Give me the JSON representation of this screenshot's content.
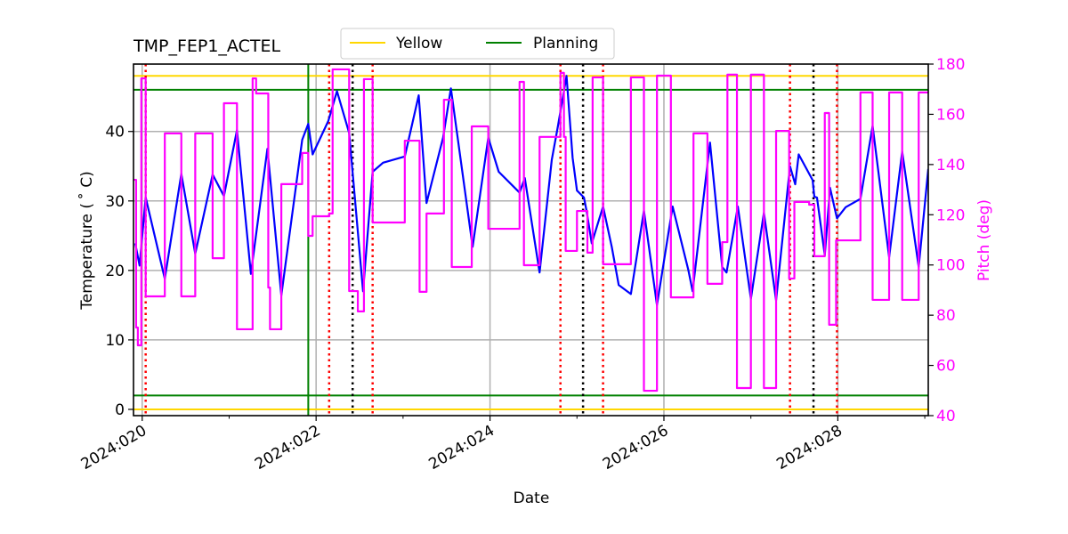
{
  "chart_data": {
    "type": "line",
    "title": "TMP_FEP1_ACTEL",
    "xlabel": "Date",
    "ylabel": "Temperature ($^\\circ$C)",
    "ylabel_display": "Temperature ( ˚ C)",
    "y2label": "Pitch (deg)",
    "xlim": [
      19.9,
      29.04
    ],
    "ylim": [
      -0.9,
      49.7
    ],
    "y2lim": [
      40,
      180
    ],
    "x_ticks": [
      20,
      22,
      24,
      26,
      28
    ],
    "x_tick_labels": [
      "2024:020",
      "2024:022",
      "2024:024",
      "2024:026",
      "2024:028"
    ],
    "x_minor_ticks": [
      21,
      23,
      25,
      27,
      29
    ],
    "y_ticks": [
      0,
      10,
      20,
      30,
      40
    ],
    "y_tick_labels": [
      "0",
      "10",
      "20",
      "30",
      "40"
    ],
    "y2_ticks": [
      40,
      60,
      80,
      100,
      120,
      140,
      160,
      180
    ],
    "y2_tick_labels": [
      "40",
      "60",
      "80",
      "100",
      "120",
      "140",
      "160",
      "180"
    ],
    "grid": true,
    "legend": {
      "placement": "top-center-outside",
      "entries": [
        {
          "label": "Yellow",
          "color": "#ffd700"
        },
        {
          "label": "Planning",
          "color": "#008000"
        }
      ]
    },
    "limit_lines": {
      "yellow": {
        "values": [
          48,
          0
        ],
        "color": "#ffd700"
      },
      "planning": {
        "values": [
          46,
          2
        ],
        "color": "#008000"
      }
    },
    "vertical_lines": {
      "green": {
        "x": [
          21.91
        ],
        "color": "#008000"
      },
      "red_dotted": {
        "x": [
          20.04,
          22.15,
          22.65,
          24.81,
          25.3,
          27.45,
          27.99
        ],
        "color": "#ff0000"
      },
      "black_dotted": {
        "x": [
          22.42,
          25.07,
          27.72
        ],
        "color": "#000000"
      }
    },
    "series": [
      {
        "axis": "left",
        "color": "#0000ff",
        "x": [
          19.92,
          19.97,
          20.04,
          20.26,
          20.45,
          20.61,
          20.81,
          20.94,
          21.09,
          21.25,
          21.44,
          21.6,
          21.84,
          21.91,
          21.96,
          22.14,
          22.24,
          22.38,
          22.54,
          22.65,
          22.77,
          23.02,
          23.18,
          23.27,
          23.46,
          23.55,
          23.8,
          23.98,
          24.1,
          24.34,
          24.4,
          24.57,
          24.71,
          24.78,
          24.88,
          24.95,
          25.0,
          25.08,
          25.11,
          25.17,
          25.3,
          25.4,
          25.48,
          25.62,
          25.77,
          25.92,
          26.1,
          26.28,
          26.33,
          26.53,
          26.67,
          26.72,
          26.85,
          27.0,
          27.15,
          27.29,
          27.45,
          27.51,
          27.55,
          27.71,
          27.73,
          27.76,
          27.85,
          27.91,
          27.99,
          28.09,
          28.26,
          28.4,
          28.59,
          28.74,
          28.93,
          29.04
        ],
        "y": [
          23.9,
          20.7,
          30.5,
          18.8,
          33.9,
          22.4,
          33.8,
          30.7,
          40.2,
          19.5,
          37.5,
          16.4,
          38.8,
          41.1,
          36.7,
          41.5,
          45.8,
          39.8,
          17.0,
          34.2,
          35.5,
          36.4,
          45.2,
          29.7,
          39.1,
          46.2,
          23.4,
          39.1,
          34.2,
          31.2,
          33.3,
          19.7,
          35.9,
          40.7,
          48.0,
          36.2,
          31.5,
          30.5,
          28.6,
          23.9,
          29.2,
          23.4,
          17.9,
          16.6,
          28.6,
          15.0,
          29.2,
          20.1,
          17.0,
          38.4,
          20.5,
          19.7,
          29.2,
          15.9,
          28.3,
          15.7,
          35.0,
          32.4,
          36.7,
          33.0,
          30.6,
          30.5,
          22.2,
          31.9,
          27.5,
          29.1,
          30.3,
          40.8,
          21.9,
          37.1,
          20.5,
          34.6
        ]
      },
      {
        "axis": "right",
        "color": "#ff00ff",
        "step": "post",
        "x": [
          19.9,
          19.93,
          19.95,
          19.99,
          20.04,
          20.26,
          20.45,
          20.61,
          20.81,
          20.94,
          21.09,
          21.27,
          21.31,
          21.45,
          21.47,
          21.6,
          21.84,
          21.91,
          21.96,
          22.15,
          22.19,
          22.38,
          22.48,
          22.55,
          22.65,
          23.02,
          23.19,
          23.27,
          23.47,
          23.56,
          23.79,
          23.98,
          24.34,
          24.39,
          24.57,
          24.81,
          24.85,
          24.87,
          25.0,
          25.12,
          25.18,
          25.3,
          25.62,
          25.77,
          25.92,
          26.08,
          26.34,
          26.5,
          26.67,
          26.73,
          26.84,
          27.0,
          27.15,
          27.29,
          27.44,
          27.5,
          27.67,
          27.73,
          27.85,
          27.9,
          27.98,
          28.26,
          28.4,
          28.59,
          28.74,
          28.93,
          29.04
        ],
        "y": [
          133.9,
          75.1,
          68.0,
          174.3,
          87.5,
          152.4,
          87.5,
          152.4,
          102.7,
          164.4,
          74.4,
          174.3,
          168.3,
          91.0,
          74.4,
          132.2,
          144.6,
          111.6,
          119.4,
          120.5,
          177.9,
          89.6,
          81.5,
          174.0,
          116.9,
          149.5,
          89.3,
          120.5,
          165.8,
          99.2,
          155.2,
          114.4,
          172.9,
          99.9,
          151.0,
          176.5,
          151.0,
          105.6,
          121.5,
          104.9,
          174.7,
          100.3,
          174.7,
          49.9,
          175.4,
          87.1,
          152.4,
          92.5,
          109.1,
          175.8,
          51.0,
          175.8,
          51.0,
          153.4,
          94.6,
          125.1,
          124.0,
          103.5,
          160.5,
          76.2,
          109.8,
          168.7,
          86.1,
          168.7,
          86.1,
          168.7,
          168.7
        ]
      }
    ]
  }
}
